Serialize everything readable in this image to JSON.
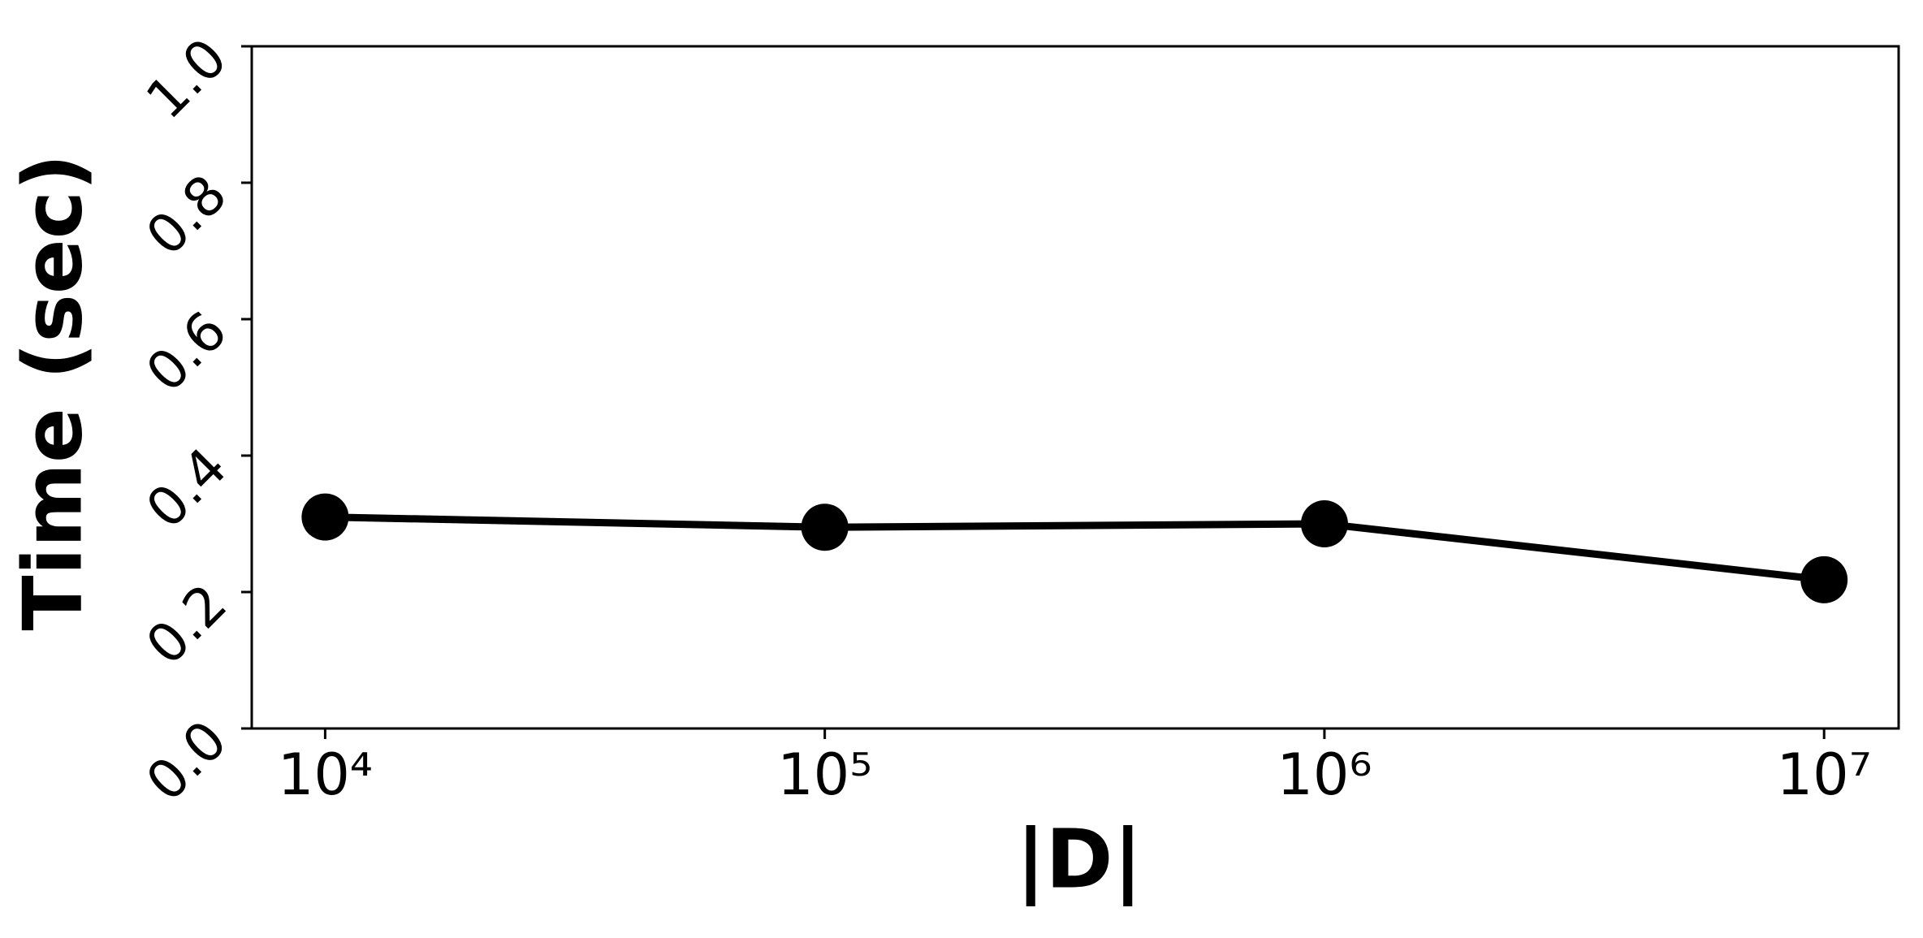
{
  "chart_data": {
    "type": "line",
    "x_label": "|D|",
    "y_label": "Time (sec)",
    "x": [
      10000,
      100000,
      1000000,
      10000000
    ],
    "series": [
      {
        "color": "#000000",
        "values": [
          0.31,
          0.295,
          0.3,
          0.218
        ]
      }
    ],
    "x_scale": "log",
    "xlim": [
      7130,
      14100000
    ],
    "xticks": [
      {
        "value": 10000,
        "label": "10⁴"
      },
      {
        "value": 100000,
        "label": "10⁵"
      },
      {
        "value": 1000000,
        "label": "10⁶"
      },
      {
        "value": 10000000,
        "label": "10⁷"
      }
    ],
    "ylim": [
      0,
      1
    ],
    "yticks": [
      {
        "value": 0,
        "label": "0.0"
      },
      0.2,
      0.4,
      0.6,
      0.8,
      {
        "value": 1,
        "label": "1.0"
      }
    ],
    "grid": false
  }
}
